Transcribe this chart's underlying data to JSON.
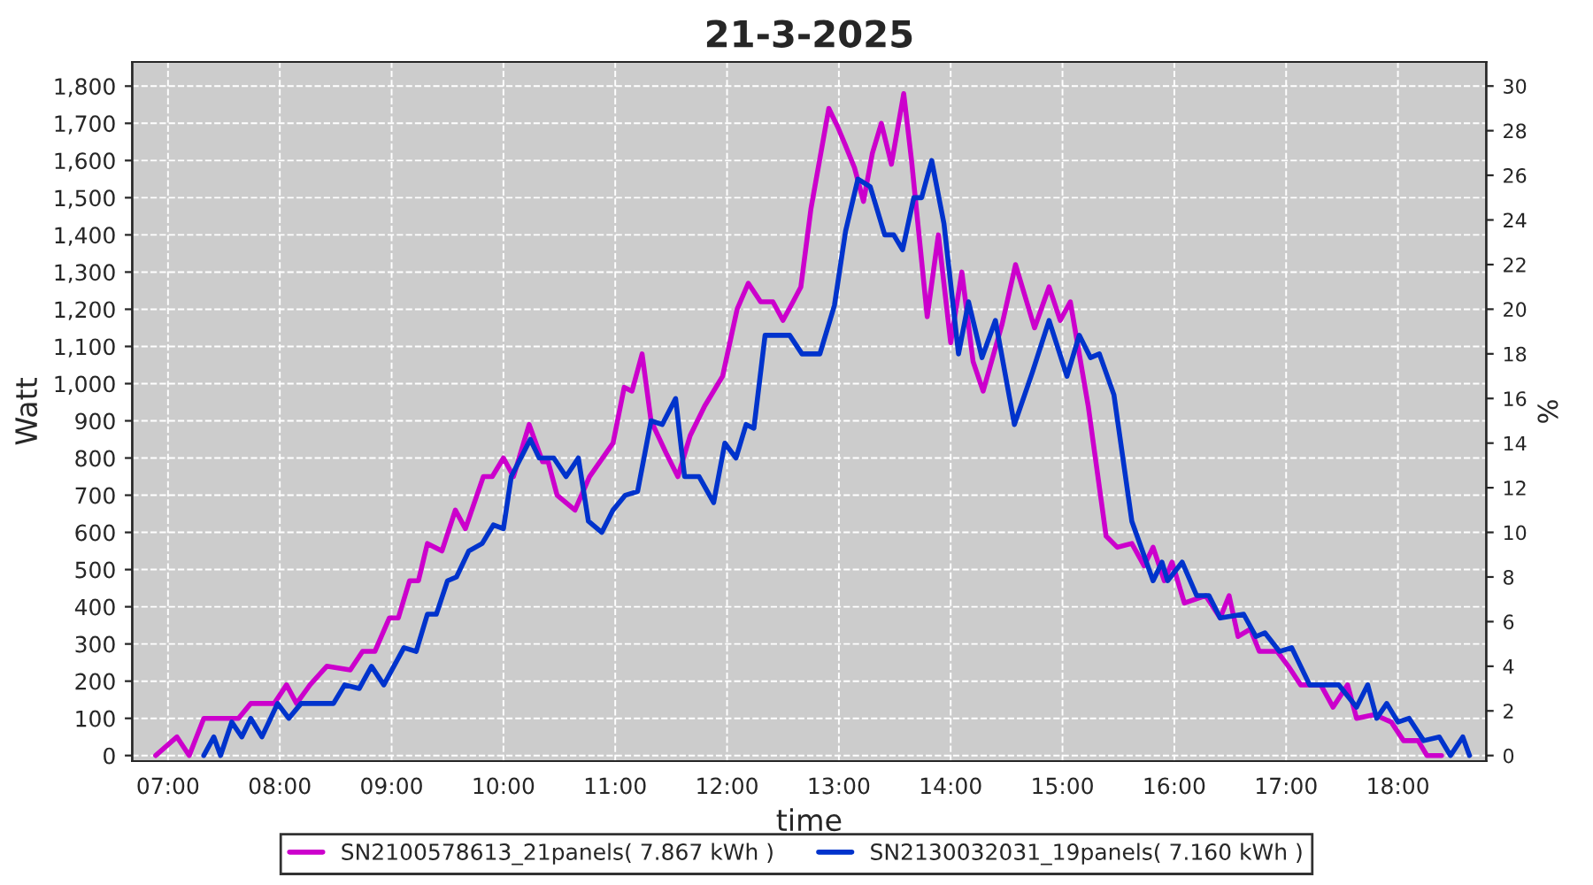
{
  "chart_data": {
    "type": "line",
    "title": "21-3-2025",
    "xlabel": "time",
    "ylabel": "Watt",
    "y2label": "%",
    "xlim": [
      6.68,
      18.79
    ],
    "ylim": [
      -15,
      1865
    ],
    "y2lim": [
      -0.25,
      31.08
    ],
    "xticks": [
      {
        "value": 7,
        "label": "07:00"
      },
      {
        "value": 8,
        "label": "08:00"
      },
      {
        "value": 9,
        "label": "09:00"
      },
      {
        "value": 10,
        "label": "10:00"
      },
      {
        "value": 11,
        "label": "11:00"
      },
      {
        "value": 12,
        "label": "12:00"
      },
      {
        "value": 13,
        "label": "13:00"
      },
      {
        "value": 14,
        "label": "14:00"
      },
      {
        "value": 15,
        "label": "15:00"
      },
      {
        "value": 16,
        "label": "16:00"
      },
      {
        "value": 17,
        "label": "17:00"
      },
      {
        "value": 18,
        "label": "18:00"
      }
    ],
    "yticks": [
      0,
      100,
      200,
      300,
      400,
      500,
      600,
      700,
      800,
      900,
      {
        "value": 1000,
        "label": "1,000"
      },
      {
        "value": 1100,
        "label": "1,100"
      },
      {
        "value": 1200,
        "label": "1,200"
      },
      {
        "value": 1300,
        "label": "1,300"
      },
      {
        "value": 1400,
        "label": "1,400"
      },
      {
        "value": 1500,
        "label": "1,500"
      },
      {
        "value": 1600,
        "label": "1,600"
      },
      {
        "value": 1700,
        "label": "1,700"
      },
      {
        "value": 1800,
        "label": "1,800"
      }
    ],
    "y2ticks": [
      0,
      2,
      4,
      6,
      8,
      10,
      12,
      14,
      16,
      18,
      20,
      22,
      24,
      26,
      28,
      30
    ],
    "grid": true,
    "legend": "bottom",
    "marker": "none",
    "line_style": "solid",
    "series": [
      {
        "name": "SN2100578613_21panels( 7.867 kWh )",
        "color": "#cc00cc",
        "x": [
          6.89,
          7.08,
          7.19,
          7.32,
          7.63,
          7.74,
          7.95,
          8.06,
          8.15,
          8.27,
          8.42,
          8.63,
          8.74,
          8.85,
          8.98,
          9.06,
          9.16,
          9.24,
          9.32,
          9.45,
          9.57,
          9.66,
          9.82,
          9.9,
          10.0,
          10.09,
          10.23,
          10.35,
          10.4,
          10.48,
          10.64,
          10.77,
          10.98,
          11.08,
          11.15,
          11.24,
          11.32,
          11.46,
          11.56,
          11.67,
          11.8,
          11.96,
          12.09,
          12.19,
          12.3,
          12.41,
          12.5,
          12.59,
          12.66,
          12.75,
          12.91,
          12.99,
          13.06,
          13.14,
          13.22,
          13.3,
          13.38,
          13.47,
          13.58,
          13.65,
          13.79,
          13.89,
          14.0,
          14.1,
          14.2,
          14.29,
          14.46,
          14.58,
          14.75,
          14.88,
          14.98,
          15.07,
          15.23,
          15.39,
          15.49,
          15.62,
          15.73,
          15.81,
          15.91,
          15.98,
          16.09,
          16.28,
          16.41,
          16.49,
          16.57,
          16.68,
          16.76,
          16.92,
          17.02,
          17.13,
          17.31,
          17.42,
          17.55,
          17.63,
          17.79,
          17.94,
          18.05,
          18.18,
          18.26,
          18.39
        ],
        "values": [
          0,
          50,
          0,
          100,
          100,
          140,
          140,
          190,
          140,
          190,
          240,
          230,
          280,
          280,
          370,
          370,
          470,
          470,
          570,
          550,
          660,
          610,
          750,
          750,
          800,
          750,
          890,
          790,
          790,
          700,
          660,
          750,
          840,
          990,
          980,
          1080,
          900,
          810,
          750,
          860,
          940,
          1020,
          1200,
          1270,
          1220,
          1220,
          1170,
          1220,
          1260,
          1470,
          1740,
          1690,
          1640,
          1580,
          1490,
          1620,
          1700,
          1590,
          1780,
          1600,
          1180,
          1400,
          1110,
          1300,
          1060,
          980,
          1160,
          1320,
          1150,
          1260,
          1170,
          1220,
          940,
          590,
          560,
          570,
          510,
          560,
          470,
          520,
          410,
          430,
          370,
          430,
          320,
          340,
          280,
          280,
          240,
          190,
          190,
          130,
          190,
          100,
          110,
          90,
          40,
          40,
          0,
          0
        ]
      },
      {
        "name": "SN2130032031_19panels( 7.160 kWh )",
        "color": "#0033cc",
        "x": [
          7.32,
          7.41,
          7.47,
          7.57,
          7.66,
          7.74,
          7.84,
          7.98,
          8.08,
          8.19,
          8.32,
          8.48,
          8.58,
          8.71,
          8.82,
          8.93,
          9.11,
          9.22,
          9.32,
          9.4,
          9.5,
          9.58,
          9.69,
          9.81,
          9.91,
          10.0,
          10.07,
          10.24,
          10.32,
          10.45,
          10.56,
          10.67,
          10.76,
          10.88,
          10.98,
          11.09,
          11.2,
          11.32,
          11.42,
          11.54,
          11.62,
          11.75,
          11.88,
          11.98,
          12.08,
          12.17,
          12.24,
          12.34,
          12.56,
          12.67,
          12.83,
          12.96,
          13.06,
          13.17,
          13.28,
          13.41,
          13.49,
          13.57,
          13.67,
          13.74,
          13.83,
          13.94,
          14.07,
          14.16,
          14.28,
          14.4,
          14.57,
          14.73,
          14.88,
          15.04,
          15.15,
          15.25,
          15.33,
          15.46,
          15.62,
          15.81,
          15.89,
          15.94,
          16.07,
          16.2,
          16.31,
          16.41,
          16.62,
          16.73,
          16.81,
          16.94,
          17.05,
          17.21,
          17.47,
          17.63,
          17.73,
          17.81,
          17.9,
          18.0,
          18.1,
          18.23,
          18.37,
          18.47,
          18.58,
          18.64
        ],
        "values": [
          0,
          50,
          0,
          90,
          50,
          100,
          50,
          140,
          100,
          140,
          140,
          140,
          190,
          180,
          240,
          190,
          290,
          280,
          380,
          380,
          470,
          480,
          550,
          570,
          620,
          610,
          750,
          850,
          800,
          800,
          750,
          800,
          630,
          600,
          660,
          700,
          710,
          900,
          890,
          960,
          750,
          750,
          680,
          840,
          800,
          890,
          880,
          1130,
          1130,
          1080,
          1080,
          1210,
          1410,
          1550,
          1530,
          1400,
          1400,
          1360,
          1500,
          1500,
          1600,
          1430,
          1080,
          1220,
          1070,
          1170,
          890,
          1030,
          1170,
          1020,
          1130,
          1070,
          1080,
          970,
          630,
          470,
          520,
          470,
          520,
          430,
          430,
          370,
          380,
          320,
          330,
          280,
          290,
          190,
          190,
          130,
          190,
          100,
          140,
          90,
          100,
          40,
          50,
          0,
          50,
          0
        ]
      }
    ]
  }
}
